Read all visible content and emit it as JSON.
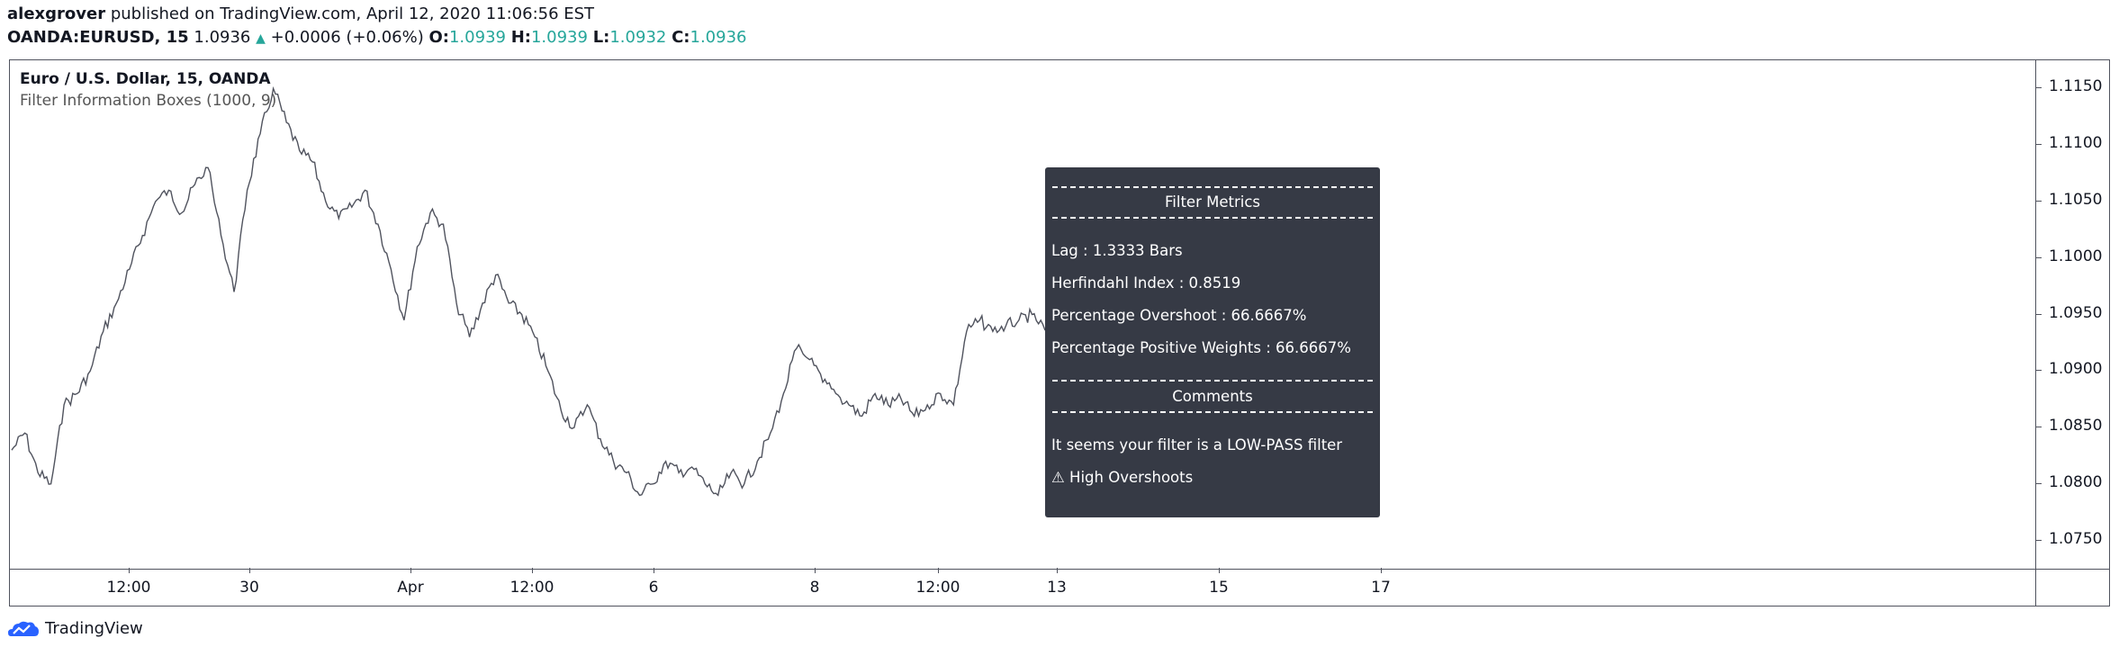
{
  "header": {
    "author": "alexgrover",
    "published": "published on TradingView.com, April 12, 2020 11:06:56 EST"
  },
  "symbol_line": {
    "symbol": "OANDA:EURUSD, 15",
    "last": "1.0936",
    "change": "+0.0006 (+0.06%)",
    "open_label": "O:",
    "open": "1.0939",
    "high_label": "H:",
    "high": "1.0939",
    "low_label": "L:",
    "low": "1.0932",
    "close_label": "C:",
    "close": "1.0936"
  },
  "legend": {
    "title": "Euro / U.S. Dollar, 15, OANDA",
    "indicator": "Filter Information Boxes (1000, 9)"
  },
  "chart_data": {
    "type": "line",
    "title": "Euro / U.S. Dollar, 15, OANDA",
    "xlabel": "",
    "ylabel": "",
    "ylim": [
      1.0725,
      1.1175
    ],
    "y_ticks": [
      "1.1150",
      "1.1100",
      "1.1050",
      "1.1000",
      "1.0950",
      "1.0900",
      "1.0850",
      "1.0800",
      "1.0750"
    ],
    "x_ticks": [
      "12:00",
      "30",
      "Apr",
      "12:00",
      "6",
      "8",
      "12:00",
      "13",
      "15",
      "17"
    ],
    "series": [
      {
        "color": "#50535e",
        "values": [
          1.083,
          1.0845,
          1.081,
          1.08,
          1.087,
          1.088,
          1.09,
          1.0935,
          1.096,
          1.099,
          1.102,
          1.105,
          1.106,
          1.104,
          1.1065,
          1.108,
          1.102,
          1.097,
          1.106,
          1.111,
          1.115,
          1.112,
          1.1095,
          1.1085,
          1.105,
          1.1035,
          1.1045,
          1.106,
          1.103,
          1.099,
          1.0945,
          1.101,
          1.104,
          1.103,
          1.096,
          1.093,
          1.096,
          1.0985,
          1.096,
          1.095,
          1.093,
          1.09,
          1.0865,
          1.085,
          1.087,
          1.084,
          1.082,
          1.081,
          1.079,
          1.08,
          1.082,
          1.081,
          1.0815,
          1.08,
          1.079,
          1.081,
          1.08,
          1.082,
          1.0845,
          1.088,
          1.092,
          1.091,
          1.089,
          1.088,
          1.087,
          1.086,
          1.088,
          1.087,
          1.0875,
          1.086,
          1.087,
          1.088,
          1.087,
          1.0935,
          1.0945,
          1.0935,
          1.094,
          1.0945,
          1.095,
          1.0936
        ]
      }
    ]
  },
  "tooltip": {
    "header1": "Filter Metrics",
    "lag": "Lag : 1.3333 Bars",
    "herfindahl": "Herfindahl Index : 0.8519",
    "overshoot": "Percentage Overshoot : 66.6667%",
    "positive": "Percentage Positive Weights : 66.6667%",
    "header2": "Comments",
    "comment1": "It seems your filter is a LOW-PASS filter",
    "comment2": "⚠ High Overshoots"
  },
  "footer": {
    "brand": "TradingView",
    "icon": "tradingview-cloud-icon",
    "icon_color": "#2962ff"
  },
  "colors": {
    "up": "#26a69a",
    "tooltip_bg": "#363a45",
    "line": "#50535e"
  }
}
